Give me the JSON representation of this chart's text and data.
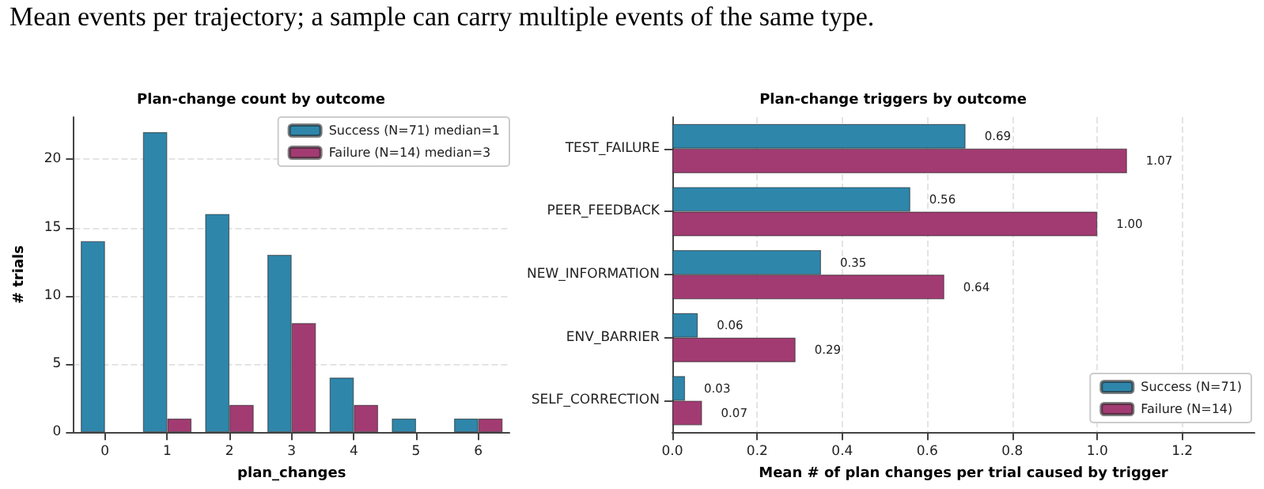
{
  "chart_data": [
    {
      "type": "bar",
      "title": "Plan-change count by outcome",
      "annotations": [
        "Mean events per trajectory; a sample can carry multiple events of the same type."
      ],
      "xlabel": "plan_changes",
      "ylabel": "# trials",
      "categories": [
        "0",
        "1",
        "2",
        "3",
        "4",
        "5",
        "6"
      ],
      "series": [
        {
          "name": "Success (N=71) median=1",
          "color": "#2e86ab",
          "values": [
            14,
            22,
            16,
            13,
            4,
            1,
            1
          ]
        },
        {
          "name": "Failure (N=14) median=3",
          "color": "#a23b72",
          "values": [
            0,
            1,
            2,
            8,
            2,
            0,
            1
          ]
        }
      ],
      "ylim": [
        0,
        23.1
      ],
      "yticks": [
        0,
        5,
        10,
        15,
        20
      ],
      "grid": "y",
      "legend": "top right"
    },
    {
      "type": "bar",
      "orientation": "horizontal",
      "title": "Plan-change triggers by outcome",
      "xlabel": "Mean # of plan changes per trial caused by trigger",
      "categories": [
        "TEST_FAILURE",
        "PEER_FEEDBACK",
        "NEW_INFORMATION",
        "ENV_BARRIER",
        "SELF_CORRECTION"
      ],
      "series": [
        {
          "name": "Success (N=71)",
          "color": "#2e86ab",
          "values": [
            0.69,
            0.56,
            0.35,
            0.06,
            0.03
          ],
          "value_labels": [
            "0.69",
            "0.56",
            "0.35",
            "0.06",
            "0.03"
          ]
        },
        {
          "name": "Failure (N=14)",
          "color": "#a23b72",
          "values": [
            1.07,
            1.0,
            0.64,
            0.29,
            0.07
          ],
          "value_labels": [
            "1.07",
            "1.00",
            "0.64",
            "0.29",
            "0.07"
          ]
        }
      ],
      "xlim": [
        0,
        1.37
      ],
      "xticks": [
        {
          "value": 0,
          "label": "0.0"
        },
        {
          "value": 0.2,
          "label": "0.2"
        },
        {
          "value": 0.4,
          "label": "0.4"
        },
        {
          "value": 0.6,
          "label": "0.6"
        },
        {
          "value": 0.8,
          "label": "0.8"
        },
        {
          "value": 1.0,
          "label": "1.0"
        },
        {
          "value": 1.2,
          "label": "1.2"
        }
      ],
      "grid": "x",
      "legend": "bottom right"
    }
  ]
}
